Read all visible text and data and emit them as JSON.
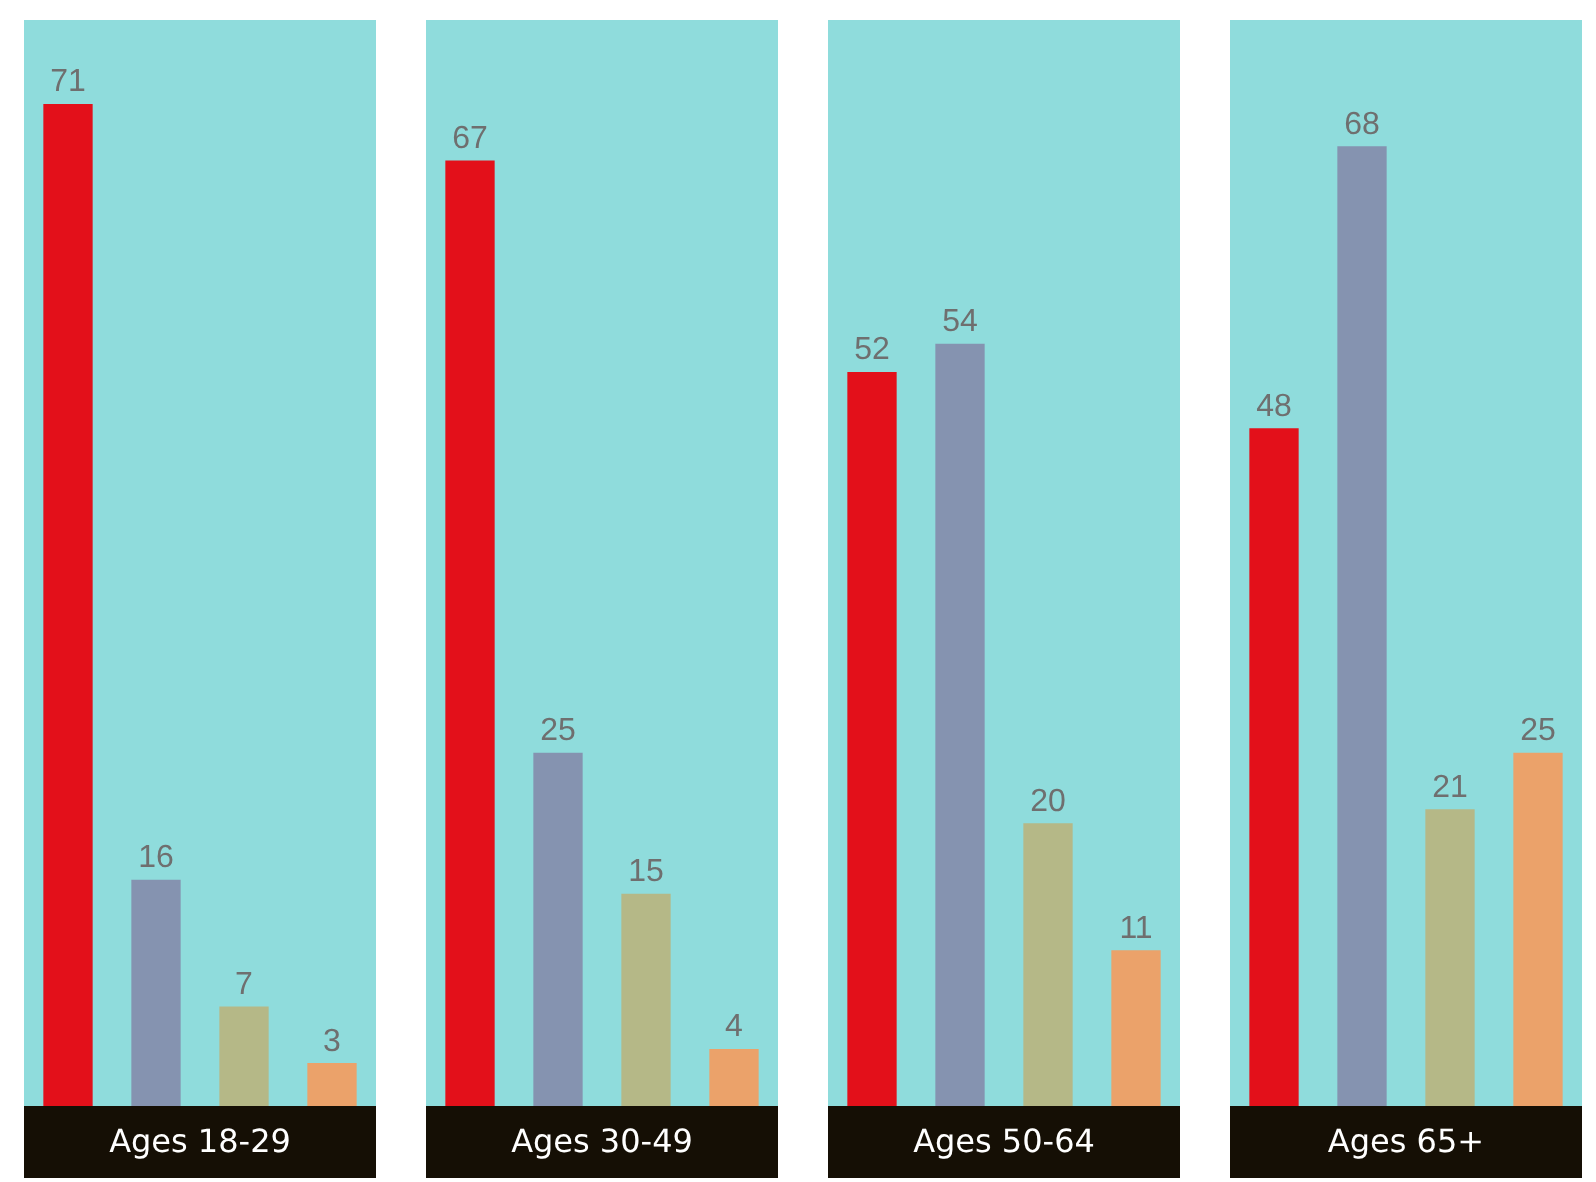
{
  "chart_data": [
    {
      "type": "bar",
      "xlabel": "Ages 18-29",
      "categories": [
        null,
        null,
        null,
        null
      ],
      "values": [
        71,
        16,
        7,
        3
      ],
      "colors": [
        "#e3101a",
        "#8593b0",
        "#b5b887",
        "#eba26a"
      ],
      "ylim": [
        0,
        77
      ],
      "data_labels": true
    },
    {
      "type": "bar",
      "xlabel": "Ages 30-49",
      "categories": [
        null,
        null,
        null,
        null
      ],
      "values": [
        67,
        25,
        15,
        4
      ],
      "colors": [
        "#e3101a",
        "#8593b0",
        "#b5b887",
        "#eba26a"
      ],
      "ylim": [
        0,
        77
      ],
      "data_labels": true
    },
    {
      "type": "bar",
      "xlabel": "Ages 50-64",
      "categories": [
        null,
        null,
        null,
        null
      ],
      "values": [
        52,
        54,
        20,
        11
      ],
      "colors": [
        "#e3101a",
        "#8593b0",
        "#b5b887",
        "#eba26a"
      ],
      "ylim": [
        0,
        77
      ],
      "data_labels": true
    },
    {
      "type": "bar",
      "xlabel": "Ages 65+",
      "categories": [
        null,
        null,
        null,
        null
      ],
      "values": [
        48,
        68,
        21,
        25
      ],
      "colors": [
        "#e3101a",
        "#8593b0",
        "#b5b887",
        "#eba26a"
      ],
      "ylim": [
        0,
        77
      ],
      "data_labels": true
    }
  ]
}
